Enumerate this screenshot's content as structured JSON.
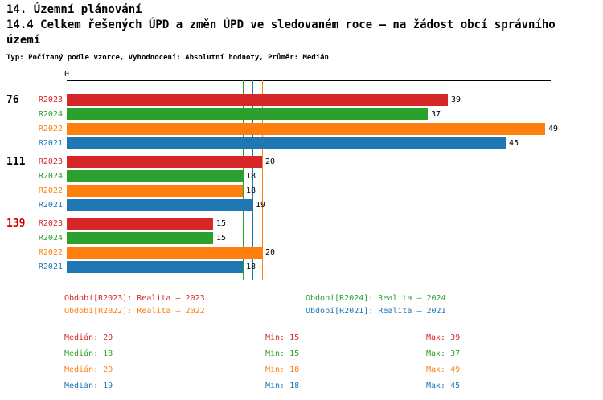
{
  "header": {
    "line1": "14. Územní plánování",
    "line2": "14.4 Celkem řešených ÚPD a změn ÚPD ve sledovaném roce – na žádost obcí správního",
    "line3": "území",
    "subtitle": "Typ: Počítaný podle vzorce, Vyhodnocení: Absolutní hodnoty, Průměr: Medián"
  },
  "chart_data": {
    "type": "bar",
    "orientation": "horizontal",
    "x_axis": {
      "origin_label": "0",
      "max": 49
    },
    "series_order": [
      "R2023",
      "R2024",
      "R2022",
      "R2021"
    ],
    "series_colors": {
      "R2023": "#d62728",
      "R2024": "#2ca02c",
      "R2022": "#ff7f0e",
      "R2021": "#1f77b4"
    },
    "groups": [
      {
        "label": "76",
        "label_color": "#000000",
        "values": {
          "R2023": 39,
          "R2024": 37,
          "R2022": 49,
          "R2021": 45
        }
      },
      {
        "label": "111",
        "label_color": "#000000",
        "values": {
          "R2023": 20,
          "R2024": 18,
          "R2022": 18,
          "R2021": 19
        }
      },
      {
        "label": "139",
        "label_color": "#cc0000",
        "values": {
          "R2023": 15,
          "R2024": 15,
          "R2022": 20,
          "R2021": 18
        }
      }
    ],
    "median_lines": {
      "R2023": 20,
      "R2024": 18,
      "R2022": 20,
      "R2021": 19
    }
  },
  "legend": [
    {
      "series": "R2023",
      "text": "Období[R2023]: Realita – 2023",
      "col": 0,
      "row": 0
    },
    {
      "series": "R2024",
      "text": "Období[R2024]: Realita – 2024",
      "col": 1,
      "row": 0
    },
    {
      "series": "R2022",
      "text": "Období[R2022]: Realita – 2022",
      "col": 0,
      "row": 1
    },
    {
      "series": "R2021",
      "text": "Období[R2021]: Realita – 2021",
      "col": 1,
      "row": 1
    }
  ],
  "stats": {
    "labels": {
      "median": "Medián",
      "min": "Min",
      "max": "Max"
    },
    "rows": [
      {
        "series": "R2023",
        "median": 20,
        "min": 15,
        "max": 39
      },
      {
        "series": "R2024",
        "median": 18,
        "min": 15,
        "max": 37
      },
      {
        "series": "R2022",
        "median": 20,
        "min": 18,
        "max": 49
      },
      {
        "series": "R2021",
        "median": 19,
        "min": 18,
        "max": 45
      }
    ]
  }
}
